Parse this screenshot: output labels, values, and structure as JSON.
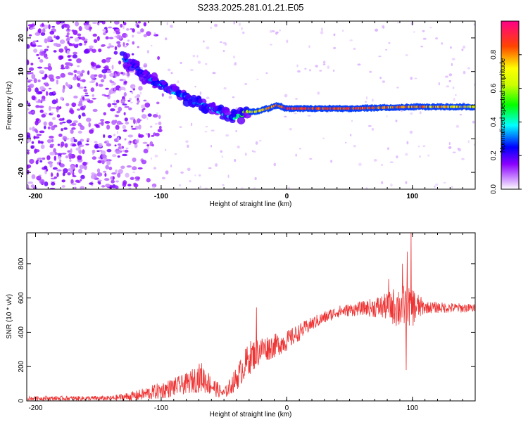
{
  "title": "S233.2025.281.01.21.E05",
  "chart_data": [
    {
      "type": "heatmap",
      "xlabel": "Height of straight line (km)",
      "ylabel": "Frequency (Hz)",
      "xlim": [
        -207,
        150
      ],
      "ylim": [
        -25,
        25
      ],
      "xticks": [
        -200,
        -100,
        0,
        100
      ],
      "yticks": [
        -20,
        -10,
        0,
        10,
        20
      ],
      "colorbar": {
        "label": "Normalized spectral amplitude",
        "range": [
          0,
          1
        ],
        "ticks": [
          "0.0",
          "0.2",
          "0.4",
          "0.6",
          "0.8"
        ],
        "tick_values": [
          0.0,
          0.2,
          0.4,
          0.6,
          0.8
        ]
      },
      "noise_region": {
        "x": [
          -207,
          -110
        ],
        "freq": [
          -25,
          25
        ],
        "amplitude": 0.1
      },
      "ridge": [
        {
          "x": -130,
          "freq": 14,
          "amp": 0.25
        },
        {
          "x": -120,
          "freq": 11,
          "amp": 0.2
        },
        {
          "x": -110,
          "freq": 8,
          "amp": 0.25
        },
        {
          "x": -100,
          "freq": 6,
          "amp": 0.3
        },
        {
          "x": -90,
          "freq": 4,
          "amp": 0.35
        },
        {
          "x": -80,
          "freq": 2.5,
          "amp": 0.3
        },
        {
          "x": -70,
          "freq": 0.5,
          "amp": 0.3
        },
        {
          "x": -60,
          "freq": -1,
          "amp": 0.35
        },
        {
          "x": -50,
          "freq": -2.5,
          "amp": 0.35
        },
        {
          "x": -40,
          "freq": -4,
          "amp": 0.4
        },
        {
          "x": -33,
          "freq": -2,
          "amp": 0.6
        },
        {
          "x": -25,
          "freq": -2,
          "amp": 0.7
        },
        {
          "x": -15,
          "freq": -1,
          "amp": 0.8
        },
        {
          "x": -8,
          "freq": 0,
          "amp": 0.85
        },
        {
          "x": 0,
          "freq": -1,
          "amp": 0.9
        },
        {
          "x": 50,
          "freq": -1,
          "amp": 0.85
        },
        {
          "x": 100,
          "freq": -0.5,
          "amp": 0.8
        },
        {
          "x": 150,
          "freq": -0.5,
          "amp": 0.7
        }
      ]
    },
    {
      "type": "line",
      "xlabel": "Height of straight line (km)",
      "ylabel": "SNR (10 * v/v)",
      "xlim": [
        -207,
        150
      ],
      "ylim": [
        0,
        980
      ],
      "xticks": [
        -200,
        -100,
        0,
        100
      ],
      "yticks": [
        0,
        200,
        400,
        600,
        800
      ],
      "series": [
        {
          "name": "SNR",
          "color": "#ee3333",
          "envelope": [
            {
              "x": -207,
              "mean": 15,
              "amp": 12
            },
            {
              "x": -140,
              "mean": 15,
              "amp": 15
            },
            {
              "x": -120,
              "mean": 30,
              "amp": 30
            },
            {
              "x": -100,
              "mean": 60,
              "amp": 50
            },
            {
              "x": -80,
              "mean": 100,
              "amp": 60
            },
            {
              "x": -68,
              "mean": 140,
              "amp": 90
            },
            {
              "x": -60,
              "mean": 90,
              "amp": 60
            },
            {
              "x": -50,
              "mean": 40,
              "amp": 30
            },
            {
              "x": -40,
              "mean": 130,
              "amp": 70
            },
            {
              "x": -30,
              "mean": 250,
              "amp": 100
            },
            {
              "x": -20,
              "mean": 300,
              "amp": 80
            },
            {
              "x": -10,
              "mean": 320,
              "amp": 70
            },
            {
              "x": 0,
              "mean": 350,
              "amp": 60
            },
            {
              "x": 10,
              "mean": 400,
              "amp": 50
            },
            {
              "x": 20,
              "mean": 450,
              "amp": 40
            },
            {
              "x": 40,
              "mean": 520,
              "amp": 35
            },
            {
              "x": 60,
              "mean": 540,
              "amp": 40
            },
            {
              "x": 80,
              "mean": 550,
              "amp": 80
            },
            {
              "x": 90,
              "mean": 550,
              "amp": 140
            },
            {
              "x": 100,
              "mean": 550,
              "amp": 120
            },
            {
              "x": 110,
              "mean": 545,
              "amp": 35
            },
            {
              "x": 150,
              "mean": 540,
              "amp": 25
            }
          ],
          "spikes": [
            {
              "x": -24,
              "y": 545
            },
            {
              "x": 81,
              "y": 710
            },
            {
              "x": 92,
              "y": 800
            },
            {
              "x": 96,
              "y": 870
            },
            {
              "x": 99,
              "y": 980
            },
            {
              "x": 95,
              "y": 180
            }
          ]
        }
      ]
    }
  ]
}
